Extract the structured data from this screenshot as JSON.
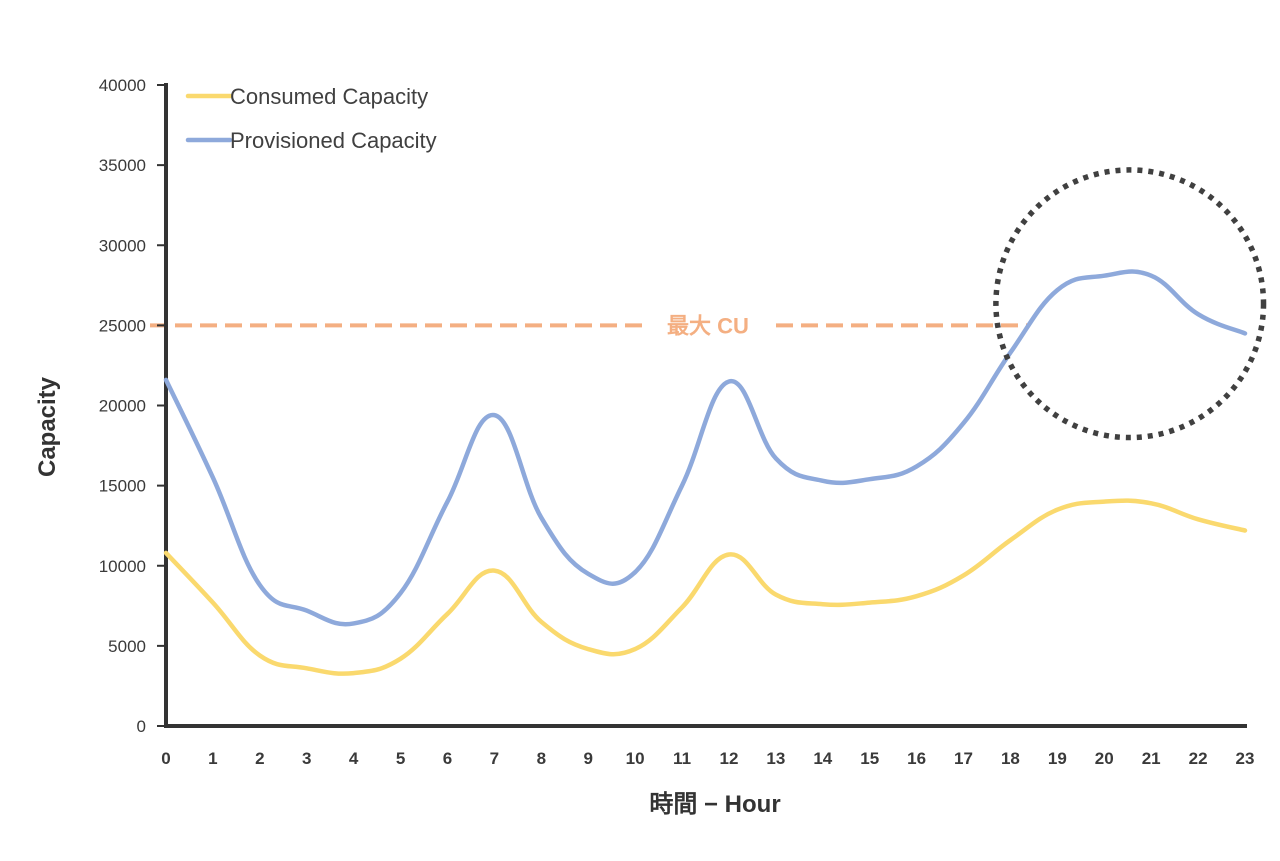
{
  "chart_data": {
    "type": "line",
    "title": "",
    "xlabel": "時間 − Hour",
    "ylabel": "Capacity",
    "ylim": [
      0,
      40000
    ],
    "yticks": [
      0,
      5000,
      10000,
      15000,
      20000,
      25000,
      30000,
      35000,
      40000
    ],
    "categories": [
      "0",
      "1",
      "2",
      "3",
      "4",
      "5",
      "6",
      "7",
      "8",
      "9",
      "10",
      "11",
      "12",
      "13",
      "14",
      "15",
      "16",
      "17",
      "18",
      "19",
      "20",
      "21",
      "22",
      "23"
    ],
    "series": [
      {
        "name": "Consumed Capacity",
        "color": "#FAD96E",
        "values": [
          10800,
          7700,
          4400,
          3600,
          3300,
          4200,
          7000,
          9700,
          6500,
          4800,
          4800,
          7400,
          10700,
          8200,
          7600,
          7700,
          8100,
          9400,
          11600,
          13500,
          14000,
          13900,
          12900,
          12200
        ]
      },
      {
        "name": "Provisioned Capacity",
        "color": "#8EA9DB",
        "values": [
          21600,
          15500,
          8800,
          7200,
          6400,
          8300,
          14000,
          19400,
          13000,
          9500,
          9600,
          15000,
          21500,
          16700,
          15300,
          15400,
          16200,
          18900,
          23300,
          27200,
          28100,
          28100,
          25700,
          24500
        ]
      }
    ],
    "reference_line": {
      "label": "最大 CU",
      "value": 25000,
      "color": "#F4AF82"
    },
    "highlight": {
      "shape": "dotted-circle",
      "color": "#404040",
      "covers_x": [
        18,
        23
      ],
      "covers_y": [
        18000,
        34700
      ]
    },
    "legend_position": "top-left",
    "grid": false
  }
}
